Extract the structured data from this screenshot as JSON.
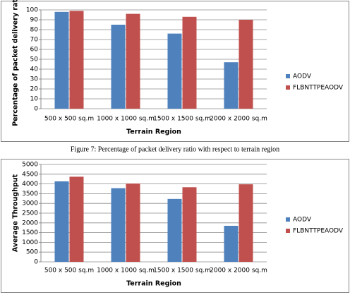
{
  "chart_data": [
    {
      "type": "bar",
      "y_label": "Percentage of packet delivery ratio",
      "x_label": "Terrain Region",
      "categories": [
        "500 x 500 sq.m",
        "1000 x 1000 sq.m",
        "1500 x 1500 sq.m",
        "2000 x 2000 sq.m"
      ],
      "series": [
        {
          "name": "AODV",
          "color": "#4f81bd",
          "values": [
            98,
            85,
            76,
            47
          ]
        },
        {
          "name": "FLBNTTPEAODV",
          "color": "#c0504d",
          "values": [
            99,
            96,
            93,
            90
          ]
        }
      ],
      "ylim": [
        0,
        100
      ],
      "yticks": [
        0,
        10,
        20,
        30,
        40,
        50,
        60,
        70,
        80,
        90,
        100
      ],
      "grid": true,
      "legend": "right"
    },
    {
      "type": "bar",
      "y_label": "Average Throughput",
      "x_label": "Terrain Region",
      "categories": [
        "500 x 500 sq.m",
        "1000 x 1000 sq.m",
        "1500 x 1500 sq.m",
        "2000 x 2000 sq.m"
      ],
      "series": [
        {
          "name": "AODV",
          "color": "#4f81bd",
          "values": [
            4130,
            3780,
            3230,
            1850
          ]
        },
        {
          "name": "FLBNTTPEAODV",
          "color": "#c0504d",
          "values": [
            4370,
            4020,
            3830,
            3980
          ]
        }
      ],
      "ylim": [
        0,
        5000
      ],
      "yticks": [
        0,
        500,
        1000,
        1500,
        2000,
        2500,
        3000,
        3500,
        4000,
        4500,
        5000
      ],
      "grid": true,
      "legend": "right"
    }
  ],
  "caption": "Figure 7: Percentage of packet delivery ratio with respect to terrain region"
}
